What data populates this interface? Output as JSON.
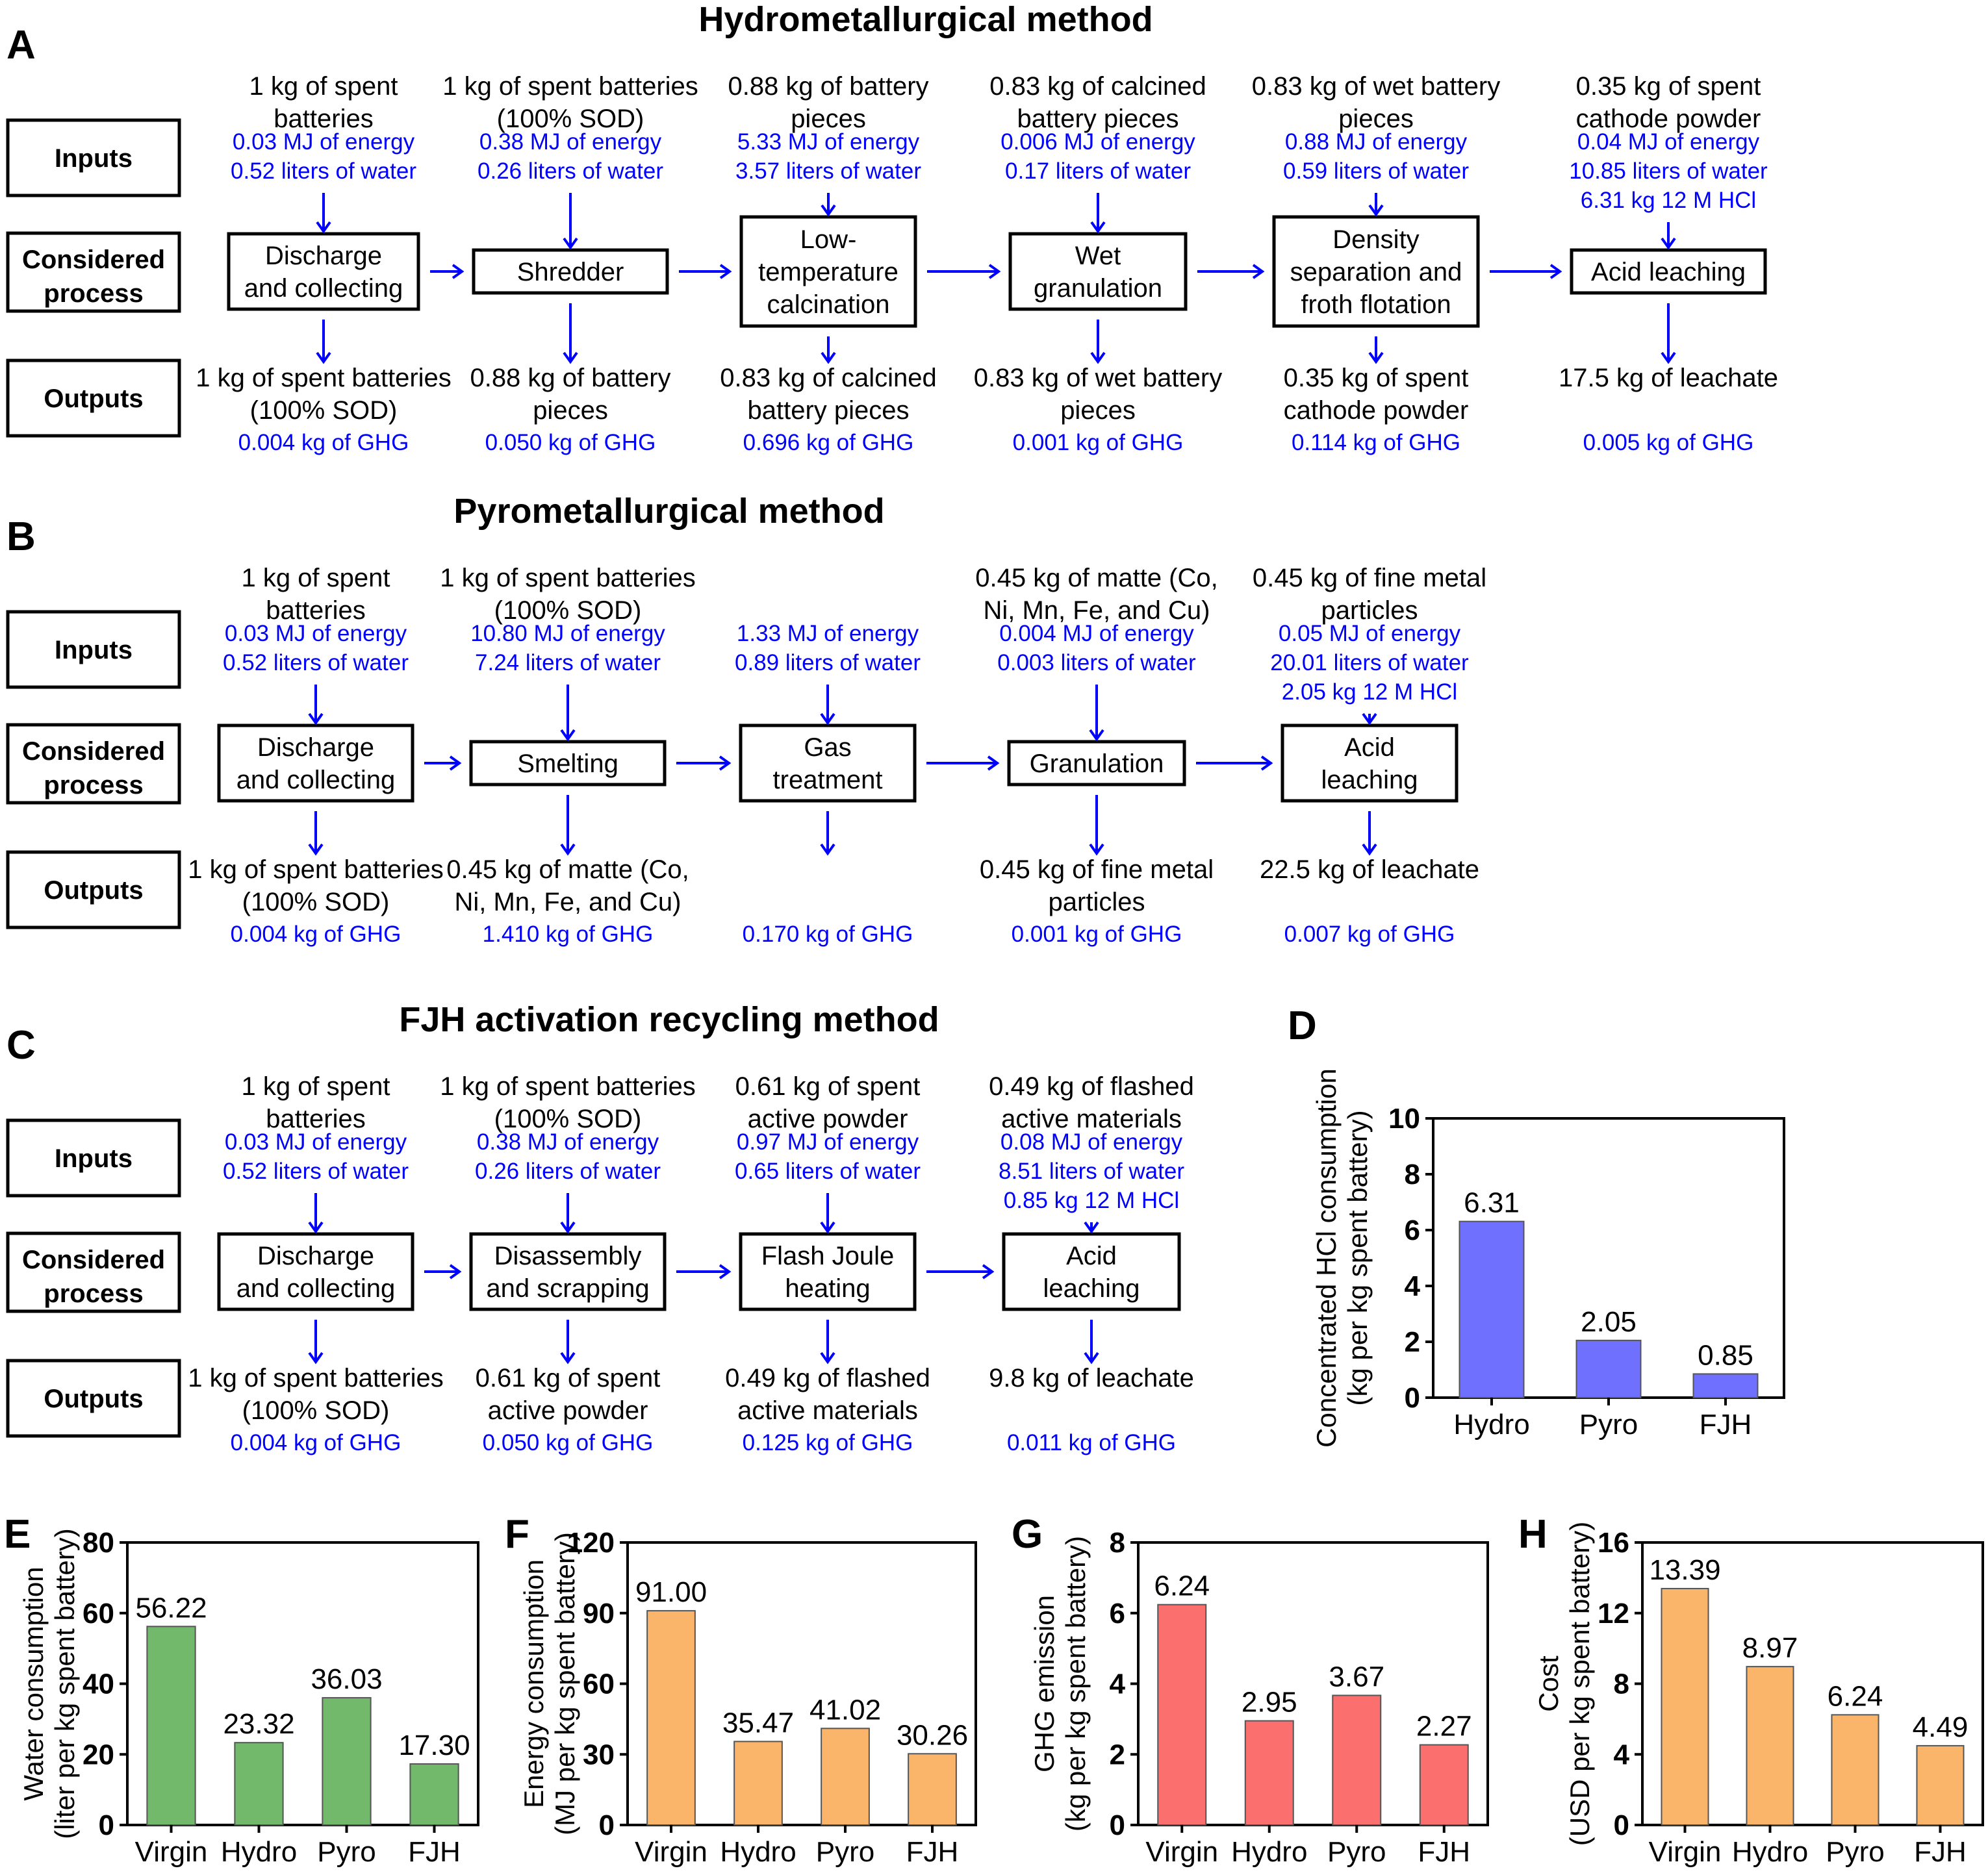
{
  "panels": {
    "A": "A",
    "B": "B",
    "C": "C",
    "D": "D",
    "E": "E",
    "F": "F",
    "G": "G",
    "H": "H"
  },
  "row_labels": {
    "inputs": "Inputs",
    "process": [
      "Considered",
      "process"
    ],
    "outputs": "Outputs"
  },
  "flows": [
    {
      "key": "A",
      "title": "Hydrometallurgical method",
      "steps": [
        {
          "in_black": [
            "1 kg of spent",
            "batteries"
          ],
          "in_blue": [
            "0.03 MJ of energy",
            "0.52 liters of water"
          ],
          "process": [
            "Discharge",
            "and collecting"
          ],
          "out_black": [
            "1 kg of spent batteries",
            "(100% SOD)"
          ],
          "out_blue": [
            "0.004 kg of GHG"
          ]
        },
        {
          "in_black": [
            "1 kg of spent batteries",
            "(100% SOD)"
          ],
          "in_blue": [
            "0.38 MJ of energy",
            "0.26 liters of water"
          ],
          "process": [
            "Shredder"
          ],
          "out_black": [
            "0.88 kg of battery",
            "pieces"
          ],
          "out_blue": [
            "0.050 kg of GHG"
          ]
        },
        {
          "in_black": [
            "0.88 kg of battery",
            "pieces"
          ],
          "in_blue": [
            "5.33 MJ of energy",
            "3.57 liters of water"
          ],
          "process": [
            "Low-",
            "temperature",
            "calcination"
          ],
          "out_black": [
            "0.83 kg of calcined",
            "battery pieces"
          ],
          "out_blue": [
            "0.696 kg of GHG"
          ]
        },
        {
          "in_black": [
            "0.83 kg of calcined",
            "battery pieces"
          ],
          "in_blue": [
            "0.006 MJ of energy",
            "0.17 liters of water"
          ],
          "process": [
            "Wet",
            "granulation"
          ],
          "out_black": [
            "0.83 kg of wet battery",
            "pieces"
          ],
          "out_blue": [
            "0.001 kg of GHG"
          ]
        },
        {
          "in_black": [
            "0.83 kg of wet battery",
            "pieces"
          ],
          "in_blue": [
            "0.88 MJ of energy",
            "0.59 liters of water"
          ],
          "process": [
            "Density",
            "separation and",
            "froth flotation"
          ],
          "out_black": [
            "0.35 kg of spent",
            "cathode powder"
          ],
          "out_blue": [
            "0.114 kg of GHG"
          ]
        },
        {
          "in_black": [
            "0.35 kg of spent",
            "cathode powder"
          ],
          "in_blue": [
            "0.04 MJ of energy",
            "10.85 liters of water",
            "6.31 kg 12 M HCl"
          ],
          "process": [
            "Acid leaching"
          ],
          "out_black": [
            "17.5 kg of leachate"
          ],
          "out_blue": [
            "0.005 kg of GHG"
          ]
        }
      ]
    },
    {
      "key": "B",
      "title": "Pyrometallurgical method",
      "steps": [
        {
          "in_black": [
            "1 kg of spent",
            "batteries"
          ],
          "in_blue": [
            "0.03 MJ of energy",
            "0.52 liters of water"
          ],
          "process": [
            "Discharge",
            "and collecting"
          ],
          "out_black": [
            "1 kg of spent batteries",
            "(100% SOD)"
          ],
          "out_blue": [
            "0.004 kg of GHG"
          ]
        },
        {
          "in_black": [
            "1 kg of spent batteries",
            "(100% SOD)"
          ],
          "in_blue": [
            "10.80 MJ of energy",
            "7.24 liters of water"
          ],
          "process": [
            "Smelting"
          ],
          "out_black": [
            "0.45 kg of matte (Co,",
            "Ni, Mn, Fe, and Cu)"
          ],
          "out_blue": [
            "1.410 kg of GHG"
          ]
        },
        {
          "in_black": [],
          "in_blue": [
            "1.33 MJ of energy",
            "0.89 liters of water"
          ],
          "process": [
            "Gas",
            "treatment"
          ],
          "out_black": [],
          "out_blue": [
            "0.170 kg of GHG"
          ]
        },
        {
          "in_black": [
            "0.45 kg of matte (Co,",
            "Ni, Mn, Fe, and Cu)"
          ],
          "in_blue": [
            "0.004 MJ of energy",
            "0.003 liters of water"
          ],
          "process": [
            "Granulation"
          ],
          "out_black": [
            "0.45 kg of fine metal",
            "particles"
          ],
          "out_blue": [
            "0.001 kg of GHG"
          ]
        },
        {
          "in_black": [
            "0.45 kg of fine metal",
            "particles"
          ],
          "in_blue": [
            "0.05 MJ of energy",
            "20.01 liters of water",
            "2.05 kg 12 M HCl"
          ],
          "process": [
            "Acid",
            "leaching"
          ],
          "out_black": [
            "22.5 kg of leachate"
          ],
          "out_blue": [
            "0.007 kg of GHG"
          ]
        }
      ]
    },
    {
      "key": "C",
      "title": "FJH activation recycling method",
      "steps": [
        {
          "in_black": [
            "1 kg of spent",
            "batteries"
          ],
          "in_blue": [
            "0.03 MJ of energy",
            "0.52 liters of water"
          ],
          "process": [
            "Discharge",
            "and collecting"
          ],
          "out_black": [
            "1 kg of spent batteries",
            "(100% SOD)"
          ],
          "out_blue": [
            "0.004 kg of GHG"
          ]
        },
        {
          "in_black": [
            "1 kg of spent batteries",
            "(100% SOD)"
          ],
          "in_blue": [
            "0.38 MJ of energy",
            "0.26 liters of water"
          ],
          "process": [
            "Disassembly",
            "and scrapping"
          ],
          "out_black": [
            "0.61 kg of spent",
            "active powder"
          ],
          "out_blue": [
            "0.050 kg of GHG"
          ]
        },
        {
          "in_black": [
            "0.61 kg of spent",
            "active powder"
          ],
          "in_blue": [
            "0.97 MJ of energy",
            "0.65 liters of water"
          ],
          "process": [
            "Flash Joule",
            "heating"
          ],
          "out_black": [
            "0.49 kg of flashed",
            "active materials"
          ],
          "out_blue": [
            "0.125 kg of GHG"
          ]
        },
        {
          "in_black": [
            "0.49 kg of flashed",
            "active materials"
          ],
          "in_blue": [
            "0.08 MJ of energy",
            "8.51 liters of water",
            "0.85 kg 12 M HCl"
          ],
          "process": [
            "Acid",
            "leaching"
          ],
          "out_black": [
            "9.8 kg of leachate"
          ],
          "out_blue": [
            "0.011 kg of GHG"
          ]
        }
      ]
    }
  ],
  "chart_data": [
    {
      "key": "D",
      "type": "bar",
      "categories": [
        "Hydro",
        "Pyro",
        "FJH"
      ],
      "values": [
        6.31,
        2.05,
        0.85
      ],
      "labels": [
        "6.31",
        "2.05",
        "0.85"
      ],
      "ylabel": [
        "Concentrated HCl consumption",
        "(kg per kg spent battery)"
      ],
      "ylim": [
        0,
        10
      ],
      "yticks": [
        0,
        2,
        4,
        6,
        8,
        10
      ],
      "color": "#7070ff"
    },
    {
      "key": "E",
      "type": "bar",
      "categories": [
        "Virgin",
        "Hydro",
        "Pyro",
        "FJH"
      ],
      "values": [
        56.22,
        23.32,
        36.03,
        17.3
      ],
      "labels": [
        "56.22",
        "23.32",
        "36.03",
        "17.30"
      ],
      "ylabel": [
        "Water consumption",
        "(liter per kg spent battery)"
      ],
      "ylim": [
        0,
        80
      ],
      "yticks": [
        0,
        20,
        40,
        60,
        80
      ],
      "color": "#72b96c"
    },
    {
      "key": "F",
      "type": "bar",
      "categories": [
        "Virgin",
        "Hydro",
        "Pyro",
        "FJH"
      ],
      "values": [
        91.0,
        35.47,
        41.02,
        30.26
      ],
      "labels": [
        "91.00",
        "35.47",
        "41.02",
        "30.26"
      ],
      "ylabel": [
        "Energy consumption",
        "(MJ per kg spent battery)"
      ],
      "ylim": [
        0,
        120
      ],
      "yticks": [
        0,
        30,
        60,
        90,
        120
      ],
      "color": "#fbb56b"
    },
    {
      "key": "G",
      "type": "bar",
      "categories": [
        "Virgin",
        "Hydro",
        "Pyro",
        "FJH"
      ],
      "values": [
        6.24,
        2.95,
        3.67,
        2.27
      ],
      "labels": [
        "6.24",
        "2.95",
        "3.67",
        "2.27"
      ],
      "ylabel": [
        "GHG emission",
        "(kg per kg spent battery)"
      ],
      "ylim": [
        0,
        8
      ],
      "yticks": [
        0,
        2,
        4,
        6,
        8
      ],
      "color": "#fc6f6f"
    },
    {
      "key": "H",
      "type": "bar",
      "categories": [
        "Virgin",
        "Hydro",
        "Pyro",
        "FJH"
      ],
      "values": [
        13.39,
        8.97,
        6.24,
        4.49
      ],
      "labels": [
        "13.39",
        "8.97",
        "6.24",
        "4.49"
      ],
      "ylabel": [
        "Cost",
        "(USD per kg spent battery)"
      ],
      "ylim": [
        0,
        16
      ],
      "yticks": [
        0,
        4,
        8,
        12,
        16
      ],
      "color": "#fbb56b"
    }
  ]
}
